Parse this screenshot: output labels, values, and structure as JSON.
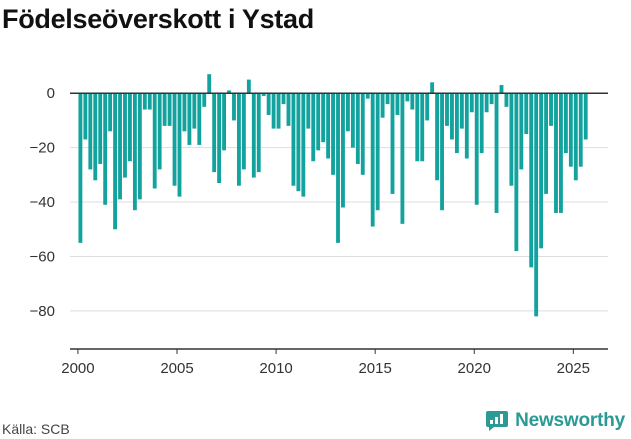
{
  "title": "Födelseöverskott i Ystad",
  "source": "Källa: SCB",
  "brand": {
    "name": "Newsworthy",
    "icon": "bar-chart-logo-icon"
  },
  "colors": {
    "bar": "#13a39e",
    "grid": "#dddddd",
    "zero_line": "#333333",
    "brand": "#2b9a95"
  },
  "chart_data": {
    "type": "bar",
    "title": "Födelseöverskott i Ystad",
    "xlabel": "",
    "ylabel": "",
    "ylim": [
      -94,
      10
    ],
    "xlim": [
      1999.6,
      2026.75
    ],
    "y_ticks": [
      0,
      -20,
      -40,
      -60,
      -80
    ],
    "y_tick_labels": [
      "0",
      "−20",
      "−40",
      "−60",
      "−80"
    ],
    "x_ticks": [
      2000,
      2005,
      2010,
      2015,
      2020,
      2025
    ],
    "x_tick_labels": [
      "2000",
      "2005",
      "2010",
      "2015",
      "2020",
      "2025"
    ],
    "grid": "horizontal",
    "period": "quarterly",
    "series": [
      {
        "start": "2000 Q1",
        "values": [
          -55,
          -17,
          -28,
          -32,
          -26,
          -41,
          -14,
          -50,
          -39,
          -31,
          -25,
          -43,
          -39,
          -6,
          -6,
          -35,
          -28,
          -12,
          -12,
          -34,
          -38,
          -14,
          -19,
          -13,
          -19,
          -5,
          7,
          -29,
          -33,
          -21,
          1,
          -10,
          -34,
          -28,
          5,
          -31,
          -29,
          -1,
          -8,
          -13,
          -13,
          -4,
          -12,
          -34,
          -36,
          -38,
          -13,
          -25,
          -21,
          -18,
          -24,
          -30,
          -55,
          -42,
          -14,
          -20,
          -26,
          -30,
          -2,
          -49,
          -43,
          -9,
          -4,
          -37,
          -8,
          -48,
          -3,
          -6,
          -25,
          -25,
          -10,
          4,
          -32,
          -43,
          -12,
          -17,
          -22,
          -13,
          -24,
          -7,
          -41,
          -22,
          -7,
          -4,
          -44,
          3,
          -5,
          -34,
          -58,
          -28,
          -15,
          -64,
          -82,
          -57,
          -37,
          -12,
          -44,
          -44,
          -22,
          -27,
          -32,
          -27,
          -17
        ]
      }
    ]
  }
}
